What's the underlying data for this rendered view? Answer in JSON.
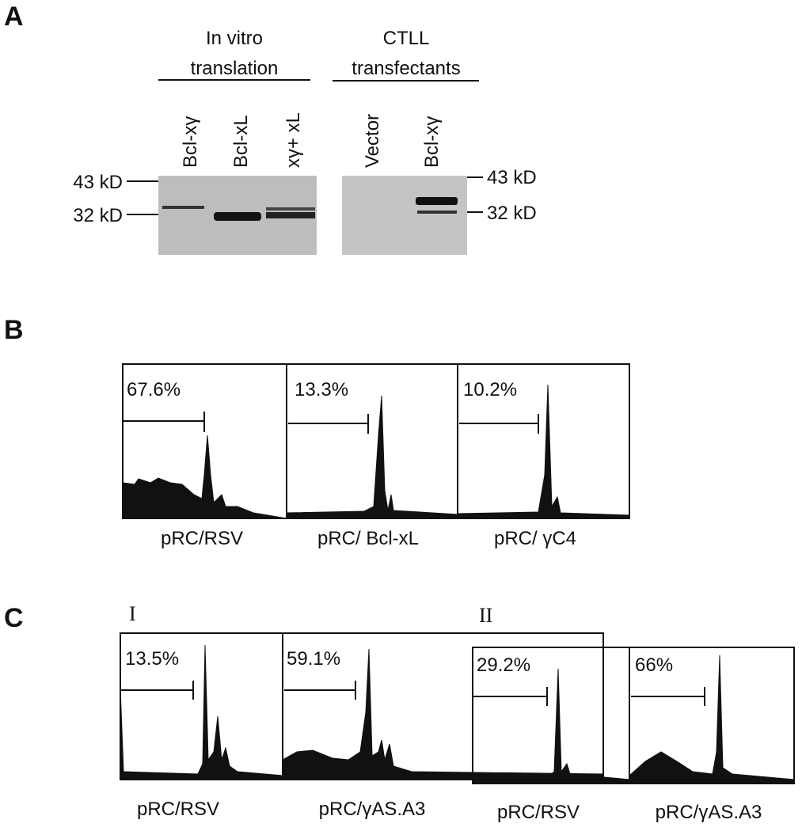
{
  "panel_a": {
    "label": "A",
    "groups": [
      {
        "title_lines": [
          "In vitro",
          "translation"
        ],
        "lanes": [
          "Bcl-xγ",
          "Bcl-xL",
          "xγ+ xL"
        ]
      },
      {
        "title_lines": [
          "CTLL",
          "transfectants"
        ],
        "lanes": [
          "Vector",
          "Bcl-xγ"
        ]
      }
    ],
    "markers_left": [
      "43 kD",
      "32 kD"
    ],
    "markers_right": [
      "43 kD",
      "32 kD"
    ]
  },
  "panel_b": {
    "label": "B",
    "plots": [
      {
        "percent": "67.6%",
        "caption": "pRC/RSV"
      },
      {
        "percent": "13.3%",
        "caption": "pRC/ Bcl-xL"
      },
      {
        "percent": "10.2%",
        "caption": "pRC/ γC4"
      }
    ]
  },
  "panel_c": {
    "label": "C",
    "groups": [
      {
        "numeral": "I",
        "plots": [
          {
            "percent": "13.5%",
            "caption": "pRC/RSV"
          },
          {
            "percent": "59.1%",
            "caption": "pRC/γAS.A3"
          }
        ]
      },
      {
        "numeral": "II",
        "plots": [
          {
            "percent": "29.2%",
            "caption": "pRC/RSV"
          },
          {
            "percent": "66%",
            "caption": "pRC/γAS.A3"
          }
        ]
      }
    ]
  }
}
